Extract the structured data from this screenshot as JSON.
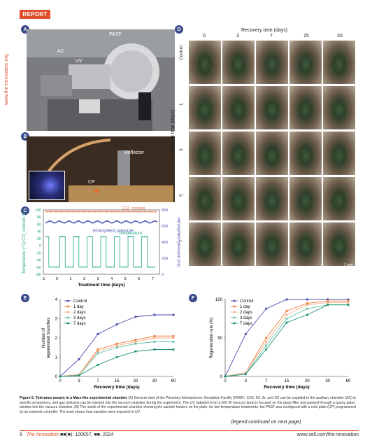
{
  "header": {
    "badge": "REPORT",
    "side_url": "www.the-innovation.org"
  },
  "panels": {
    "A": {
      "letter": "A",
      "labels": {
        "pasf": "PASF",
        "ac": "AC",
        "uv": "UV"
      }
    },
    "B": {
      "letter": "B",
      "labels": {
        "reflector": "Reflector",
        "cp": "CP"
      }
    },
    "C": {
      "letter": "C"
    },
    "D": {
      "letter": "D",
      "title": "Recovery time (days)",
      "cols": [
        "0",
        "3",
        "7",
        "15",
        "30"
      ],
      "row_title": "Treatment time (days)",
      "rows": [
        "Control",
        "1",
        "3",
        "5",
        "7"
      ],
      "scale": "1 mm"
    },
    "E": {
      "letter": "E"
    },
    "F": {
      "letter": "F"
    }
  },
  "chart_data": [
    {
      "panel": "C",
      "type": "line",
      "xlabel": "Treatment time (days)",
      "ylabel_left": "Temperature (°C) / CO2 content (%)",
      "ylabel_left_parts": [
        "Temperature (°C)",
        "CO",
        "2",
        " content (%)"
      ],
      "ylabel_right": "Atmospheric pressure (Pa)",
      "xlim": [
        -1,
        7.5
      ],
      "ylim_left": [
        -80,
        100
      ],
      "ylim_right": [
        0,
        800
      ],
      "x_ticks": [
        "-1",
        "0",
        "1",
        "2",
        "3",
        "4",
        "5",
        "6",
        "7"
      ],
      "y_ticks_left": [
        "100",
        "80",
        "60",
        "40",
        "20",
        "0",
        "-20",
        "-40",
        "-60",
        "-80"
      ],
      "y_ticks_right": [
        "800",
        "600",
        "400",
        "200",
        "0"
      ],
      "series": [
        {
          "name": "CO2 content",
          "label_parts": [
            "CO",
            "2",
            " content"
          ],
          "color": "#e8734a",
          "axis": "left",
          "x": [
            -0.8,
            7.3
          ],
          "y": [
            95,
            95
          ]
        },
        {
          "name": "Atmospheric pressure",
          "color": "#4a4fb0",
          "axis": "right",
          "x": [
            -0.8,
            7.3
          ],
          "y": [
            650,
            650
          ]
        },
        {
          "name": "Temperature",
          "color": "#1fa58a",
          "axis": "left",
          "x": [
            -0.8,
            -0.6,
            -0.6,
            0.2,
            0.2,
            0.6,
            0.6,
            1.2,
            1.2,
            1.6,
            1.6,
            2.2,
            2.2,
            2.6,
            2.6,
            3.2,
            3.2,
            3.6,
            3.6,
            4.2,
            4.2,
            4.6,
            4.6,
            5.2,
            5.2,
            5.6,
            5.6,
            6.2,
            6.2,
            6.6,
            6.6,
            7.2
          ],
          "y": [
            25,
            25,
            -60,
            -60,
            25,
            25,
            -60,
            -60,
            25,
            25,
            -60,
            -60,
            25,
            25,
            -60,
            -60,
            25,
            25,
            -60,
            -60,
            25,
            25,
            -60,
            -60,
            25,
            25,
            -60,
            -60,
            25,
            25,
            -60,
            -60
          ]
        }
      ]
    },
    {
      "panel": "E",
      "type": "line",
      "xlabel": "Recovery time (days)",
      "ylabel": "Number of regenerated branches",
      "categories": [
        "0",
        "3",
        "7",
        "15",
        "20",
        "30",
        "60"
      ],
      "ylim": [
        0,
        4
      ],
      "y_ticks": [
        "0",
        "1",
        "2",
        "3",
        "4"
      ],
      "series": [
        {
          "name": "Control",
          "color": "#4a4fb0",
          "values": [
            0,
            0.9,
            2.2,
            2.7,
            3.1,
            3.2,
            3.2
          ]
        },
        {
          "name": "1 day",
          "color": "#f07c3a",
          "values": [
            0,
            0.1,
            1.4,
            1.7,
            1.9,
            2.1,
            2.1
          ]
        },
        {
          "name": "2 days",
          "color": "#f2b08a",
          "values": [
            0,
            0.1,
            1.3,
            1.6,
            1.8,
            2.0,
            2.0
          ]
        },
        {
          "name": "3 days",
          "color": "#63c2a8",
          "values": [
            0,
            0.05,
            1.2,
            1.5,
            1.7,
            1.8,
            1.8
          ]
        },
        {
          "name": "7 days",
          "color": "#1a8f7a",
          "values": [
            0,
            0.05,
            0.6,
            1.0,
            1.3,
            1.4,
            1.4
          ]
        }
      ]
    },
    {
      "panel": "F",
      "type": "line",
      "xlabel": "Recovery time (days)",
      "ylabel": "Regeneration rate (%)",
      "categories": [
        "0",
        "3",
        "7",
        "15",
        "20",
        "30",
        "60"
      ],
      "ylim": [
        0,
        100
      ],
      "y_ticks": [
        "0",
        "50",
        "100"
      ],
      "series": [
        {
          "name": "Control",
          "color": "#4a4fb0",
          "values": [
            0,
            55,
            88,
            100,
            100,
            100,
            100
          ]
        },
        {
          "name": "1 day",
          "color": "#f07c3a",
          "values": [
            0,
            5,
            50,
            85,
            95,
            98,
            98
          ]
        },
        {
          "name": "2 days",
          "color": "#f2b08a",
          "values": [
            0,
            5,
            45,
            80,
            93,
            96,
            96
          ]
        },
        {
          "name": "3 days",
          "color": "#63c2a8",
          "values": [
            0,
            3,
            40,
            75,
            88,
            93,
            93
          ]
        },
        {
          "name": "7 days",
          "color": "#1a8f7a",
          "values": [
            0,
            3,
            35,
            70,
            80,
            93,
            93
          ]
        }
      ]
    }
  ],
  "caption": {
    "lead": "Figure 5.",
    "title": "Tolerance assays in a Mars-like experimental chamber",
    "body": "(A) General view of the Planetary Atmospheres Simulation Facility (PASF). CO2, N2, Ar, and O2 can be supplied to the auxiliary chamber (AC) in specific proportions, and gas mixtures can be injected into the vacuum chamber during the experiment. The UV radiation from a 500 W mercury lamp is focused on the glass filter and passed through a quartz glass window into the vacuum chamber. (B) The inside of the experimental chamber showing the sample holders on the plate, for low-temperature treatments; the PASF was configured with a cold plate (CP) programmed by an external controller. The inset shows how samples were exposed to UV"
  },
  "legend_continued": "(legend continued on next page)",
  "footer": {
    "page": "6",
    "journal": "The Innovation",
    "volume": "■■(■): 100657, ■■, 2024",
    "url": "www.cell.com/the-innovation"
  }
}
